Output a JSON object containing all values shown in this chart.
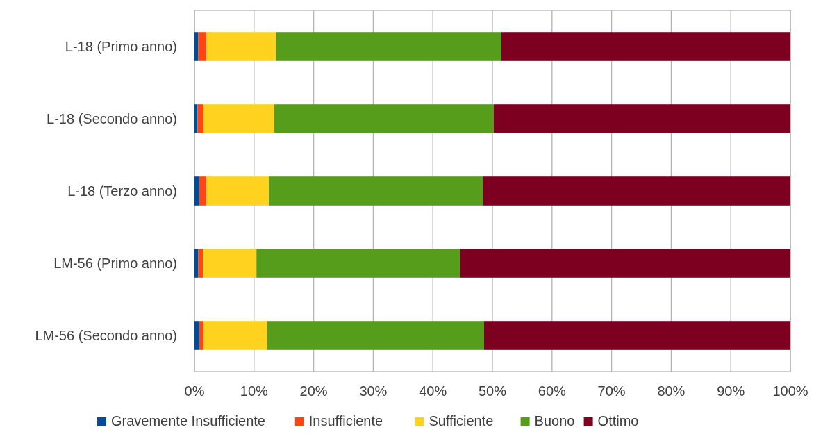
{
  "chart_data": {
    "type": "bar",
    "orientation": "horizontal",
    "stacked": true,
    "categories": [
      "L-18 (Primo anno)",
      "L-18 (Secondo anno)",
      "L-18 (Terzo anno)",
      "LM-56 (Primo anno)",
      "LM-56 (Secondo anno)"
    ],
    "series": [
      {
        "name": "Gravemente Insufficiente",
        "color": "#004c97",
        "values": [
          0.6,
          0.5,
          0.8,
          0.6,
          0.8
        ]
      },
      {
        "name": "Insufficiente",
        "color": "#ff4612",
        "values": [
          1.4,
          1.0,
          1.2,
          0.8,
          0.7
        ]
      },
      {
        "name": "Sufficiente",
        "color": "#ffd220",
        "values": [
          11.7,
          11.9,
          10.5,
          9.0,
          10.7
        ]
      },
      {
        "name": "Buono",
        "color": "#579d1c",
        "values": [
          37.8,
          36.8,
          35.9,
          34.2,
          36.4
        ]
      },
      {
        "name": "Ottimo",
        "color": "#7e0021",
        "values": [
          48.5,
          49.8,
          51.6,
          55.4,
          51.4
        ]
      }
    ],
    "xlim": [
      0,
      100
    ],
    "xticks": [
      {
        "value": 0,
        "label": "0%"
      },
      {
        "value": 10,
        "label": "10%"
      },
      {
        "value": 20,
        "label": "20%"
      },
      {
        "value": 30,
        "label": "30%"
      },
      {
        "value": 40,
        "label": "40%"
      },
      {
        "value": 50,
        "label": "50%"
      },
      {
        "value": 60,
        "label": "60%"
      },
      {
        "value": 70,
        "label": "70%"
      },
      {
        "value": 80,
        "label": "80%"
      },
      {
        "value": 90,
        "label": "90%"
      },
      {
        "value": 100,
        "label": "100%"
      }
    ],
    "grid": "x",
    "legend": "bottom"
  }
}
